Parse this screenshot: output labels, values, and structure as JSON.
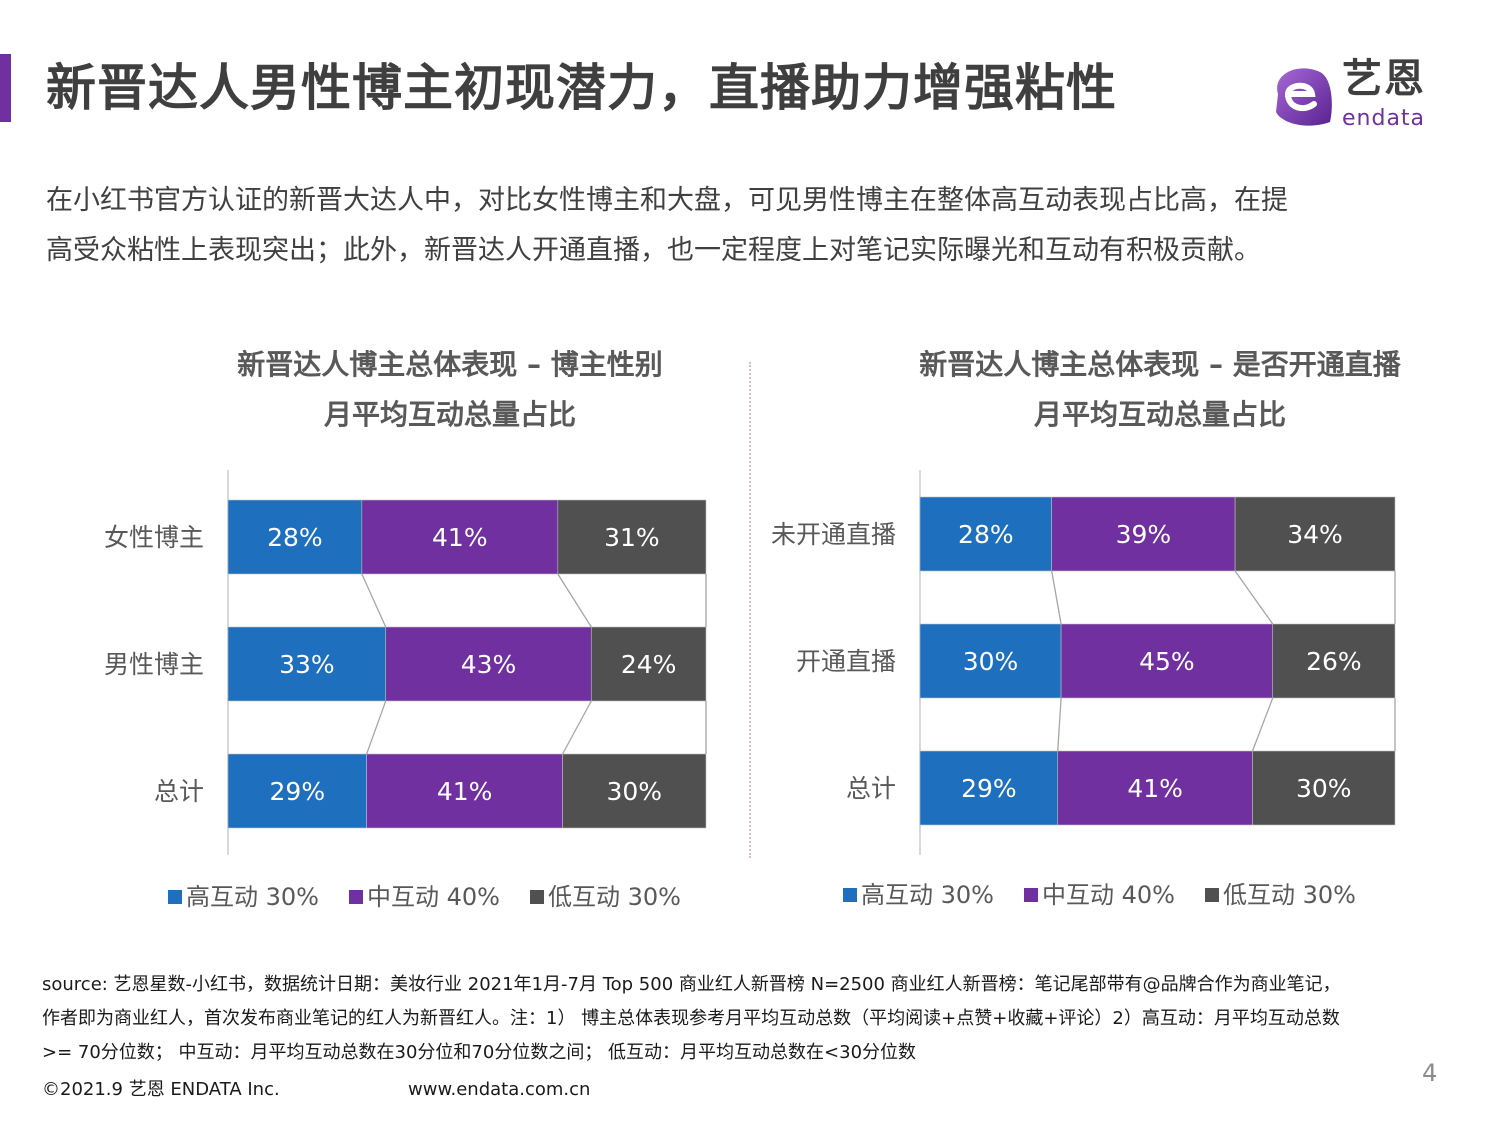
{
  "header": {
    "title": "新晋达人男性博主初现潜力，直播助力增强粘性",
    "accent_color": "#7030a0",
    "logo": {
      "cn": "艺恩",
      "en": "endata",
      "icon": "endata-e-logo-icon"
    }
  },
  "intro": {
    "lines": [
      "在小红书官方认证的新晋大达人中，对比女性博主和大盘，可见男性博主在整体高互动表现占比高，在提",
      "高受众粘性上表现突出；此外，新晋达人开通直播，也一定程度上对笔记实际曝光和互动有积极贡献。"
    ]
  },
  "colors": {
    "high": "#1f6fbf",
    "mid": "#7030a0",
    "low": "#505050",
    "connector": "#a6a6a6"
  },
  "chart_data": [
    {
      "type": "bar",
      "orientation": "horizontal",
      "stacked": "percent",
      "title": [
        "新晋达人博主总体表现 – 博主性别",
        "月平均互动总量占比"
      ],
      "categories": [
        "女性博主",
        "男性博主",
        "总计"
      ],
      "series": [
        {
          "name": "高互动 30%",
          "values": [
            28,
            33,
            29
          ]
        },
        {
          "name": "中互动 40%",
          "values": [
            41,
            43,
            41
          ]
        },
        {
          "name": "低互动 30%",
          "values": [
            31,
            24,
            30
          ]
        }
      ],
      "xlim": [
        0,
        100
      ],
      "data_labels": true,
      "series_lines": true,
      "legend": "bottom",
      "grid": false
    },
    {
      "type": "bar",
      "orientation": "horizontal",
      "stacked": "percent",
      "title": [
        "新晋达人博主总体表现 – 是否开通直播",
        "月平均互动总量占比"
      ],
      "categories": [
        "未开通直播",
        "开通直播",
        "总计"
      ],
      "series": [
        {
          "name": "高互动 30%",
          "values": [
            28,
            30,
            29
          ]
        },
        {
          "name": "中互动 40%",
          "values": [
            39,
            45,
            41
          ]
        },
        {
          "name": "低互动 30%",
          "values": [
            34,
            26,
            30
          ]
        }
      ],
      "xlim": [
        0,
        100
      ],
      "data_labels": true,
      "series_lines": true,
      "legend": "bottom",
      "grid": false
    }
  ],
  "footnote": {
    "lines": [
      "source: 艺恩星数-小红书，数据统计日期：美妆行业 2021年1月-7月 Top 500 商业红人新晋榜 N=2500  商业红人新晋榜：笔记尾部带有@品牌合作为商业笔记，",
      "作者即为商业红人，首次发布商业笔记的红人为新晋红人。注：1） 博主总体表现参考月平均互动总数（平均阅读+点赞+收藏+评论）2）高互动：月平均互动总数",
      ">= 70分位数； 中互动：月平均互动总数在30分位和70分位数之间； 低互动：月平均互动总数在<30分位数"
    ],
    "copyright": "©2021.9 艺恩 ENDATA Inc.",
    "website": "www.endata.com.cn",
    "page_number": "4"
  }
}
